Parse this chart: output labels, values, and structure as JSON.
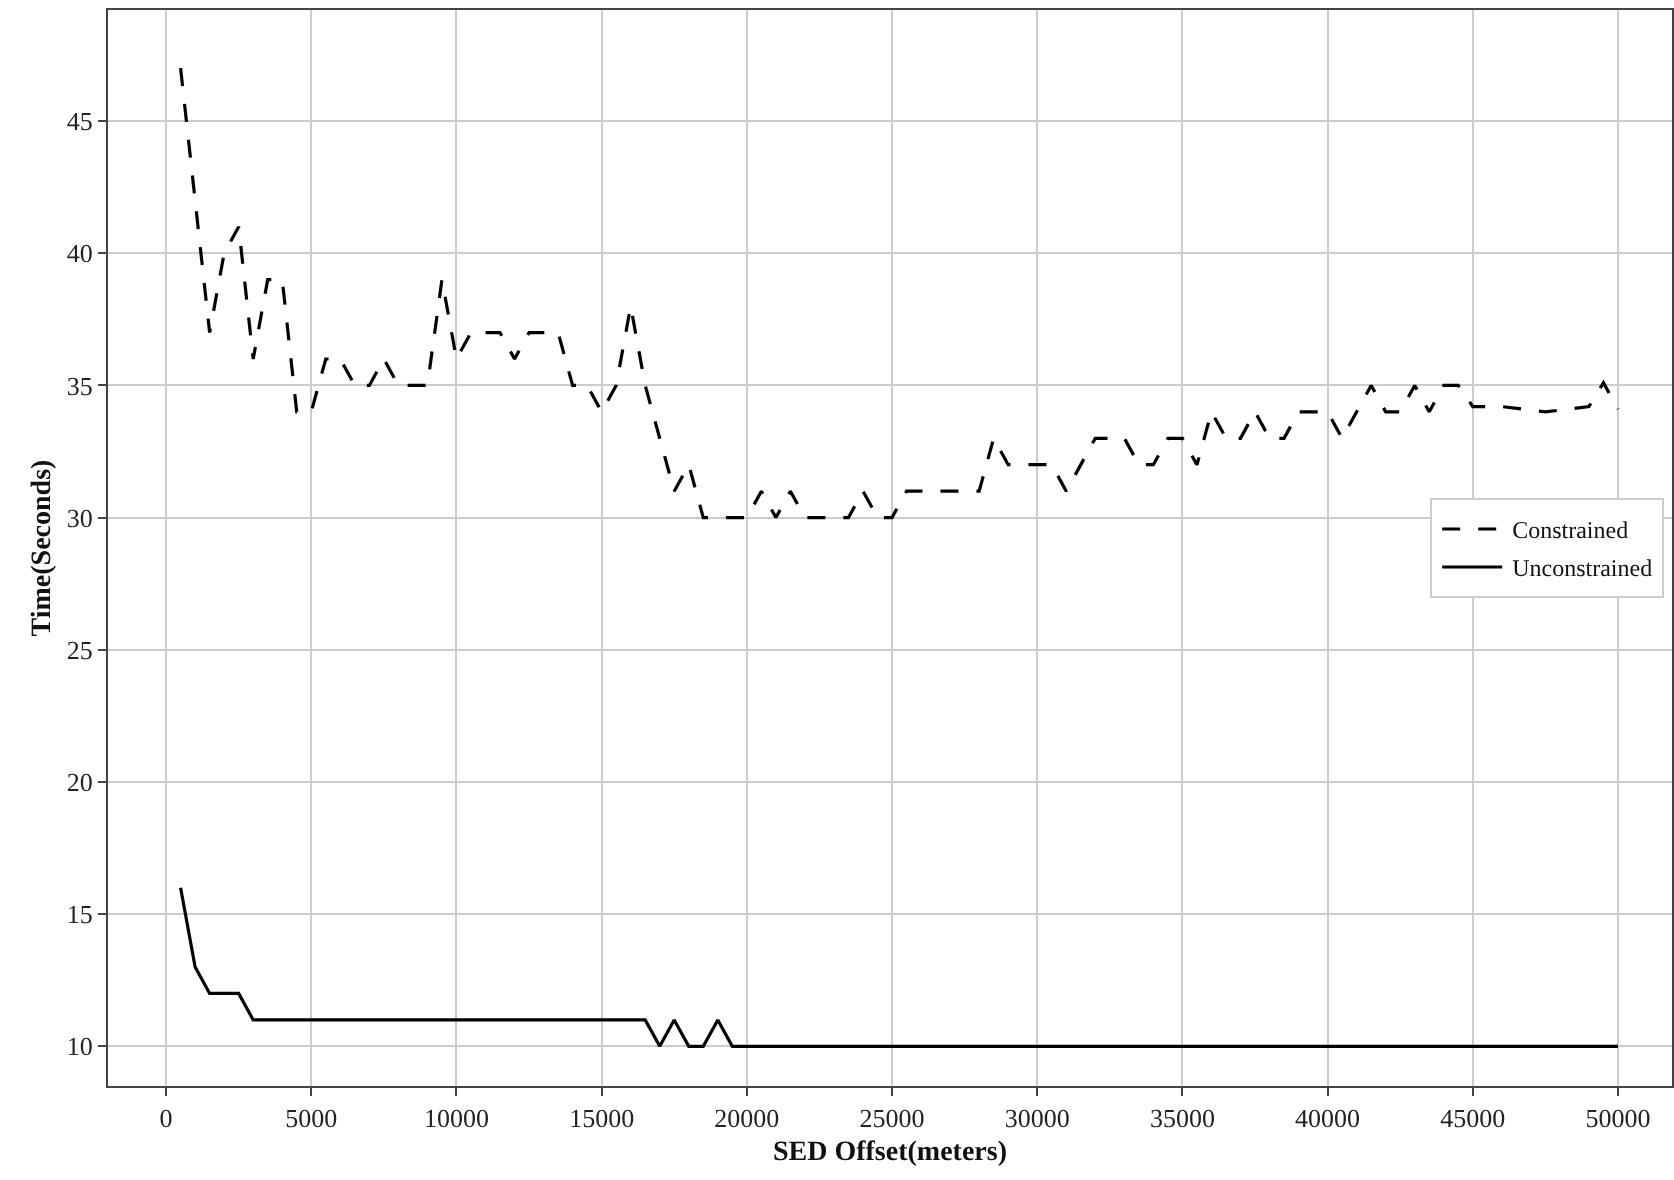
{
  "chart_data": {
    "type": "line",
    "xlabel": "SED Offset(meters)",
    "ylabel": "Time(Seconds)",
    "xlim": [
      -2000,
      51860
    ],
    "ylim": [
      8.5,
      49.2
    ],
    "xticks": [
      0,
      5000,
      10000,
      15000,
      20000,
      25000,
      30000,
      35000,
      40000,
      45000,
      50000
    ],
    "yticks": [
      10,
      15,
      20,
      25,
      30,
      35,
      40,
      45
    ],
    "grid": true,
    "legend": "right",
    "marker": "none",
    "series": [
      {
        "name": "Constrained",
        "color": "#000000",
        "line_style": "dashed",
        "x": [
          500,
          1500,
          2000,
          2500,
          3000,
          3500,
          4000,
          4500,
          5000,
          5500,
          6000,
          6500,
          7000,
          7500,
          8000,
          9000,
          9500,
          10000,
          10500,
          11500,
          12000,
          12500,
          13500,
          14000,
          14500,
          15000,
          15500,
          16000,
          16500,
          17500,
          18000,
          18500,
          20000,
          20500,
          21000,
          21500,
          22000,
          23500,
          24000,
          24500,
          25000,
          25500,
          28000,
          28500,
          29000,
          30500,
          31000,
          32000,
          33000,
          33500,
          34000,
          34500,
          35000,
          35500,
          36000,
          36500,
          37000,
          37500,
          38000,
          38500,
          39000,
          40000,
          40500,
          41500,
          42000,
          42500,
          43000,
          43500,
          44000,
          44500,
          45000,
          46000,
          47500,
          49000,
          49500,
          50000
        ],
        "values": [
          47,
          37,
          40,
          41,
          36,
          39,
          39,
          34,
          34,
          36,
          36,
          35,
          35,
          36,
          35,
          35,
          39,
          36,
          37,
          37,
          36,
          37,
          37,
          35,
          35,
          34,
          35,
          38,
          35,
          31,
          32,
          30,
          30,
          31,
          30,
          31,
          30,
          30,
          31,
          30,
          30,
          31,
          31,
          33,
          32,
          32,
          31,
          33,
          33,
          32,
          32,
          33,
          33,
          32,
          34,
          33,
          33,
          34,
          33,
          33,
          34,
          34,
          33,
          35,
          34,
          34,
          35,
          34,
          35,
          35,
          34.2,
          34.2,
          34,
          34.2,
          35.1,
          34.1
        ]
      },
      {
        "name": "Unconstrained",
        "color": "#000000",
        "line_style": "solid",
        "x": [
          500,
          1000,
          1500,
          2500,
          3000,
          16500,
          17000,
          17500,
          18000,
          18500,
          19000,
          19500,
          50000
        ],
        "values": [
          16,
          13,
          12,
          12,
          11,
          11,
          10,
          11,
          10,
          10,
          11,
          10,
          10
        ]
      }
    ]
  }
}
